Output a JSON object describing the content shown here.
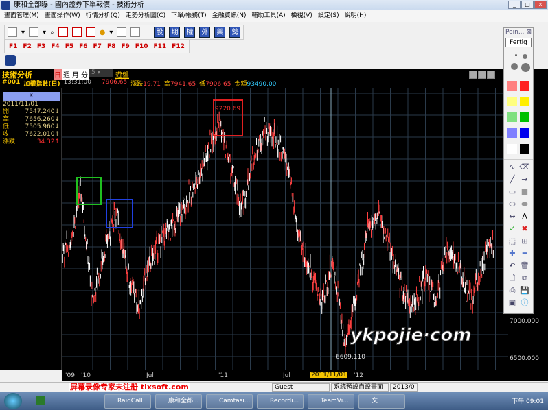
{
  "window": {
    "title": "康和全部曝 - 國內證券下單報價 - 技術分析"
  },
  "menu": [
    "畫面管理(M)",
    "畫面操作(W)",
    "行情分析(Q)",
    "走勢分析圖(C)",
    "下單/帳務(T)",
    "金融資訊(N)",
    "輔助工具(A)",
    "檢視(V)",
    "設定(S)",
    "說明(H)"
  ],
  "toolbar": {
    "blue_buttons": [
      "股",
      "期",
      "權",
      "外",
      "興",
      "勢"
    ],
    "function_keys": [
      "F1",
      "F2",
      "F3",
      "F4",
      "F5",
      "F6",
      "F7",
      "F8",
      "F9",
      "F10",
      "F11",
      "F12"
    ]
  },
  "header": {
    "panel_title": "技術分析",
    "periods": [
      "日",
      "週",
      "月",
      "分"
    ],
    "active_period": "日",
    "minute_value": "5",
    "extra": "遊盤",
    "symbol": "#001",
    "name": "加權指數(日)",
    "time": "13:31:00",
    "price": "7906.65",
    "change_label": "漲跌",
    "change": "19.71",
    "high_label": "高",
    "high": "7941.65",
    "low_label": "低",
    "low": "7906.65",
    "amount_label": "金額",
    "amount": "93490.00"
  },
  "left_panel": {
    "header": "K",
    "date": "2011/11/01",
    "rows": [
      {
        "label": "開",
        "value": "7547.240↓",
        "color": "#e6d28a"
      },
      {
        "label": "高",
        "value": "7656.260↓",
        "color": "#e6d28a"
      },
      {
        "label": "低",
        "value": "7505.960↓",
        "color": "#e6d28a"
      },
      {
        "label": "收",
        "value": "7622.010↑",
        "color": "#e6d28a"
      },
      {
        "label": "漲跌",
        "value": "34.32↑",
        "color": "#ff3030"
      }
    ]
  },
  "chart_data": {
    "type": "line",
    "title": "",
    "ylim": [
      6500,
      9600
    ],
    "y_tick_labels": [
      "7000.000",
      "6500.000"
    ],
    "x_tick_labels": [
      "'09",
      "'10",
      "Jul",
      "'11",
      "Jul",
      "'12"
    ],
    "cursor_date": "2011/11/01",
    "annotations": [
      {
        "text": "9220.69",
        "box_color": "#e02020"
      },
      {
        "text": "6609.110"
      },
      {
        "box_color": "#20c020"
      },
      {
        "box_color": "#2040e0"
      }
    ],
    "points": [
      [
        "2009-11",
        7600
      ],
      [
        "2009-12",
        7800
      ],
      [
        "2010-01",
        8430
      ],
      [
        "2010-02",
        7140
      ],
      [
        "2010-03",
        7700
      ],
      [
        "2010-04",
        8200
      ],
      [
        "2010-05",
        7500
      ],
      [
        "2010-06",
        7060
      ],
      [
        "2010-07",
        7600
      ],
      [
        "2010-08",
        7850
      ],
      [
        "2010-09",
        8000
      ],
      [
        "2010-10",
        8230
      ],
      [
        "2010-11",
        8500
      ],
      [
        "2010-12",
        8820
      ],
      [
        "2011-01",
        9220
      ],
      [
        "2011-02",
        8700
      ],
      [
        "2011-03",
        8160
      ],
      [
        "2011-04",
        8800
      ],
      [
        "2011-05",
        9090
      ],
      [
        "2011-06",
        9000
      ],
      [
        "2011-07",
        8700
      ],
      [
        "2011-08",
        7840
      ],
      [
        "2011-09",
        7500
      ],
      [
        "2011-10",
        7140
      ],
      [
        "2011-11",
        7600
      ],
      [
        "2011-12",
        6670
      ],
      [
        "2012-01",
        7200
      ],
      [
        "2012-02",
        8000
      ],
      [
        "2012-03",
        8150
      ],
      [
        "2012-04",
        7700
      ],
      [
        "2012-05",
        7300
      ],
      [
        "2012-06",
        7060
      ],
      [
        "2012-07",
        7400
      ],
      [
        "2012-08",
        7200
      ],
      [
        "2012-09",
        7770
      ],
      [
        "2012-10",
        7500
      ],
      [
        "2012-11",
        7140
      ],
      [
        "2012-12",
        7600
      ],
      [
        "2013-01",
        7840
      ]
    ],
    "grid": true,
    "colors": {
      "up": "#ff4040",
      "down": "#ffffff"
    }
  },
  "toolbox": {
    "title": "Poin...",
    "done_button": "Fertig",
    "colors": [
      "#ff8080",
      "#ff2020",
      "#ffff80",
      "#ffee00",
      "#80e080",
      "#00c000",
      "#8080ff",
      "#0000ee",
      "#ffffff",
      "#000000"
    ]
  },
  "status": {
    "user": "Guest",
    "layout": "系統預設自設畫面",
    "date": "2013/0"
  },
  "taskbar": {
    "items": [
      "RaidCall",
      "康和全都...",
      "Camtasi...",
      "Recordi...",
      "TeamVi...",
      "文"
    ],
    "clock": "下午 09:01"
  },
  "watermarks": [
    "ykpojie·com",
    "屏幕录像专家未注册 tlxsoft.com"
  ]
}
